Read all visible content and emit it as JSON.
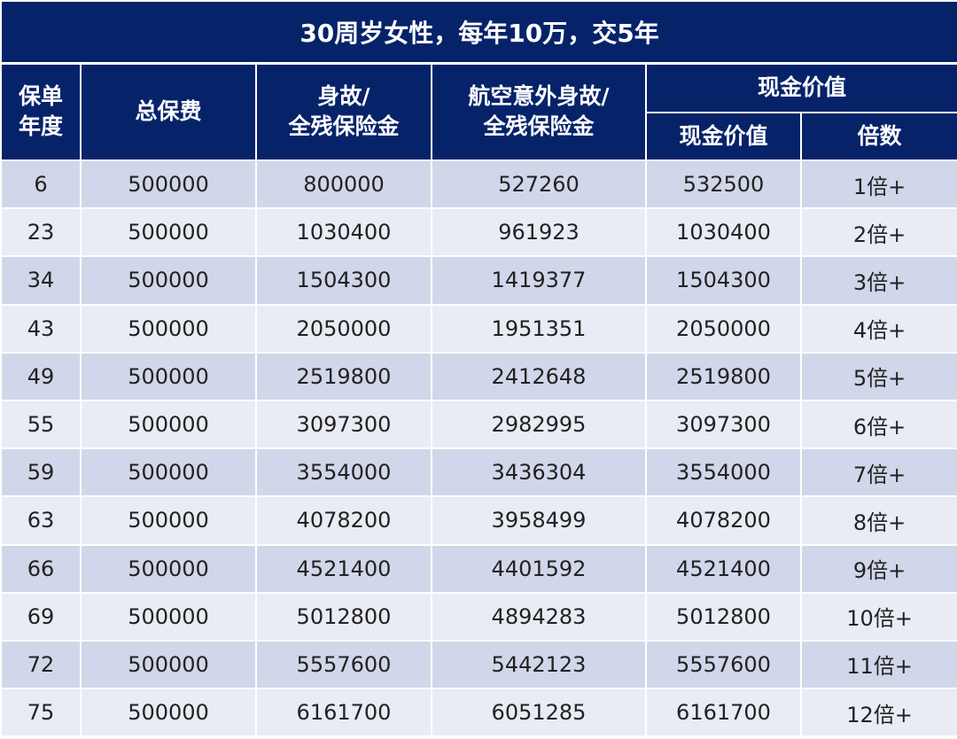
{
  "title": "30周岁女性，每年10万，交5年",
  "headers": {
    "year": "保单\n年度",
    "premium": "总保费",
    "death": "身故/\n全残保险金",
    "air_accident": "航空意外身故/\n全残保险金",
    "cash_group": "现金价值",
    "cash_value": "现金价值",
    "multiple": "倍数"
  },
  "chart_data": {
    "type": "table",
    "title": "30周岁女性，每年10万，交5年",
    "columns": [
      "保单年度",
      "总保费",
      "身故/全残保险金",
      "航空意外身故/全残保险金",
      "现金价值",
      "倍数"
    ],
    "rows": [
      [
        "6",
        "500000",
        "800000",
        "527260",
        "532500",
        "1倍+"
      ],
      [
        "23",
        "500000",
        "1030400",
        "961923",
        "1030400",
        "2倍+"
      ],
      [
        "34",
        "500000",
        "1504300",
        "1419377",
        "1504300",
        "3倍+"
      ],
      [
        "43",
        "500000",
        "2050000",
        "1951351",
        "2050000",
        "4倍+"
      ],
      [
        "49",
        "500000",
        "2519800",
        "2412648",
        "2519800",
        "5倍+"
      ],
      [
        "55",
        "500000",
        "3097300",
        "2982995",
        "3097300",
        "6倍+"
      ],
      [
        "59",
        "500000",
        "3554000",
        "3436304",
        "3554000",
        "7倍+"
      ],
      [
        "63",
        "500000",
        "4078200",
        "3958499",
        "4078200",
        "8倍+"
      ],
      [
        "66",
        "500000",
        "4521400",
        "4401592",
        "4521400",
        "9倍+"
      ],
      [
        "69",
        "500000",
        "5012800",
        "4894283",
        "5012800",
        "10倍+"
      ],
      [
        "72",
        "500000",
        "5557600",
        "5442123",
        "5557600",
        "11倍+"
      ],
      [
        "75",
        "500000",
        "6161700",
        "6051285",
        "6161700",
        "12倍+"
      ]
    ]
  },
  "colors": {
    "header_bg": "#06236a",
    "row_odd": "#d1d7ea",
    "row_even": "#e9ebf5"
  }
}
